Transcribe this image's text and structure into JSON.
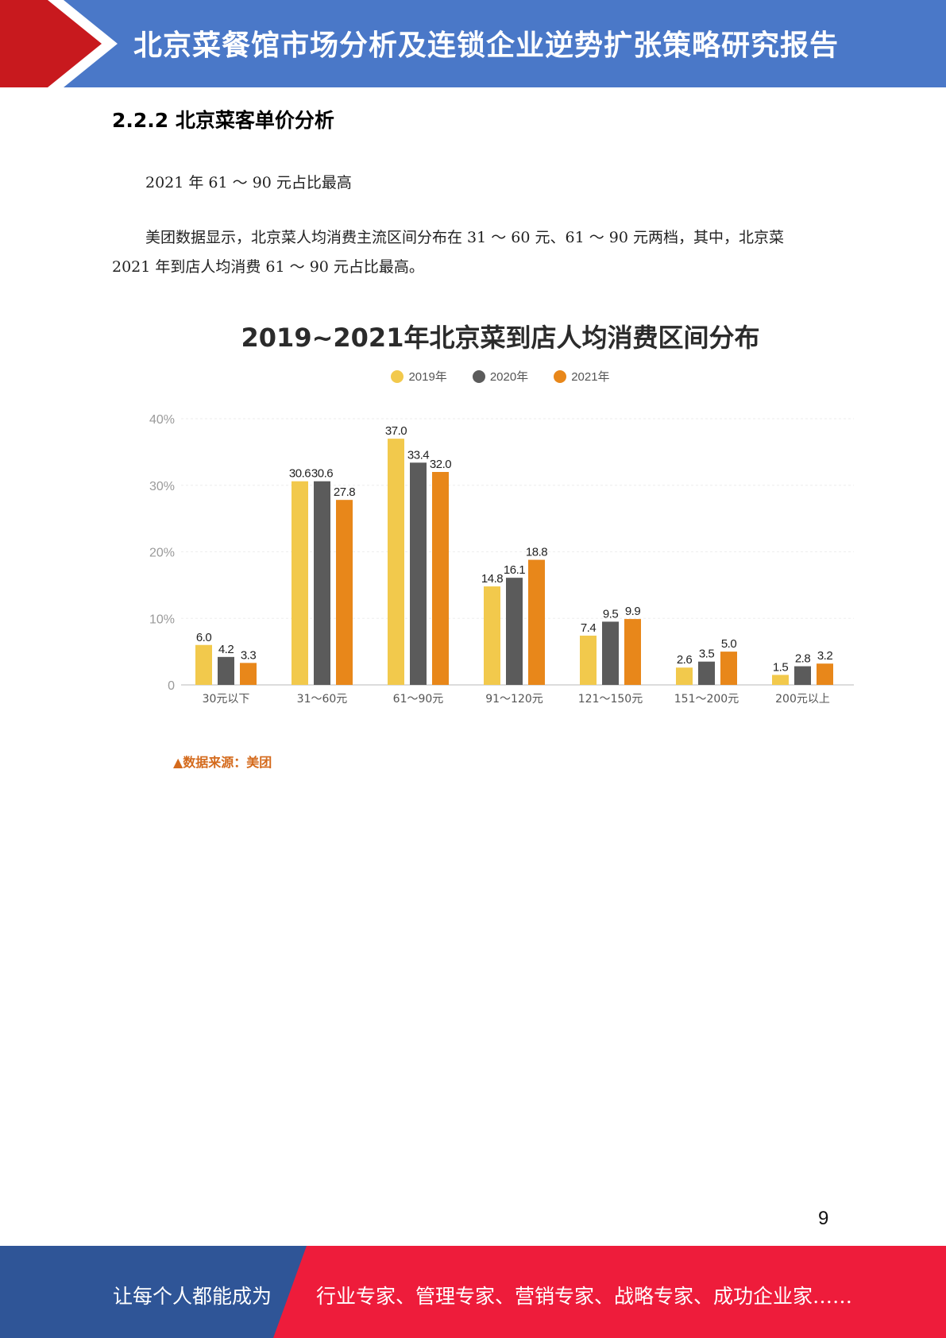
{
  "header": {
    "title": "北京菜餐馆市场分析及连锁企业逆势扩张策略研究报告",
    "colors": {
      "blue": "#4a78c8",
      "red": "#c8191e"
    }
  },
  "section": {
    "heading": "2.2.2 北京菜客单价分析"
  },
  "paragraphs": {
    "p1": "2021 年 61 ～ 90 元占比最高",
    "p2": "美团数据显示，北京菜人均消费主流区间分布在 31 ～ 60 元、61 ～ 90 元两档，其中，北京菜 2021 年到店人均消费 61 ～ 90 元占比最高。"
  },
  "chart_data": {
    "type": "bar",
    "title": "2019~2021年北京菜到店人均消费区间分布",
    "categories": [
      "30元以下",
      "31～60元",
      "61～90元",
      "91～120元",
      "121～150元",
      "151～200元",
      "200元以上"
    ],
    "series": [
      {
        "name": "2019年",
        "color": "#f2c94c",
        "values": [
          6.0,
          30.6,
          37.0,
          14.8,
          7.4,
          2.6,
          1.5
        ]
      },
      {
        "name": "2020年",
        "color": "#5b5b5b",
        "values": [
          4.2,
          30.6,
          33.4,
          16.1,
          9.5,
          3.5,
          2.8
        ]
      },
      {
        "name": "2021年",
        "color": "#e8871a",
        "values": [
          3.3,
          27.8,
          32.0,
          18.8,
          9.9,
          5.0,
          3.2
        ]
      }
    ],
    "yticks": [
      "0",
      "10%",
      "20%",
      "30%",
      "40%"
    ],
    "ylim": [
      0,
      40
    ],
    "grid": true,
    "legend": "top-center"
  },
  "source_note": "▲数据来源：美团",
  "page_number": "9",
  "footer": {
    "left_text": "让每个人都能成为",
    "right_text": "行业专家、管理专家、营销专家、战略专家、成功企业家……",
    "colors": {
      "blue": "#2f5597",
      "red": "#ee1c3b"
    }
  }
}
